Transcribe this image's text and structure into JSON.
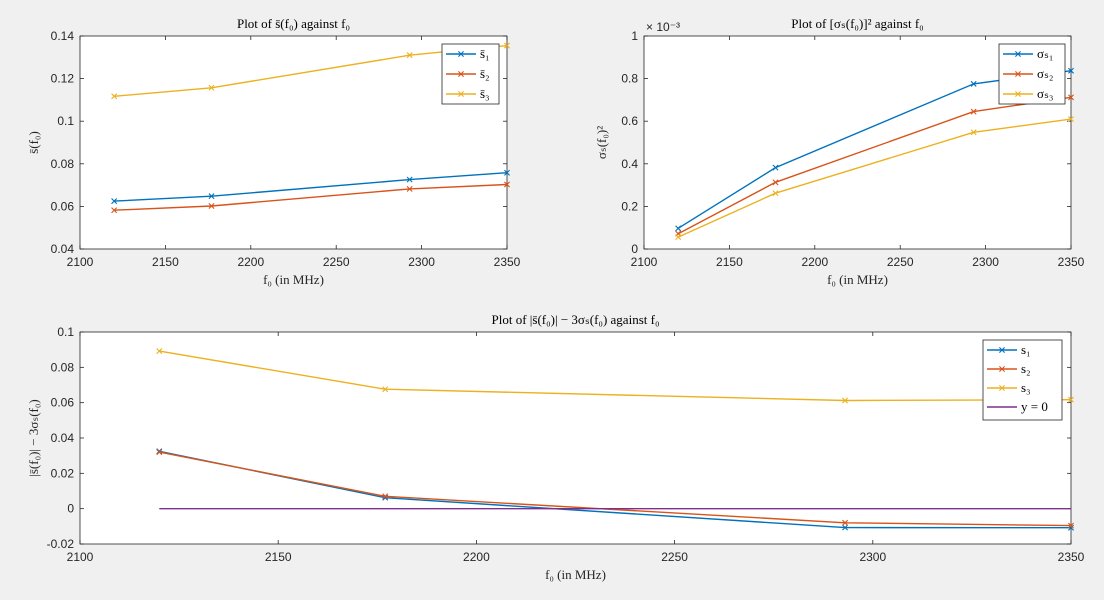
{
  "chart_data": [
    {
      "type": "line",
      "title": "Plot of s̄(f₀) against f₀",
      "xlabel": "f₀ (in MHz)",
      "ylabel": "s̄(f₀)",
      "xlim": [
        2100,
        2350
      ],
      "ylim": [
        0.04,
        0.14
      ],
      "xticks": [
        "2100",
        "2150",
        "2200",
        "2250",
        "2300",
        "2350"
      ],
      "yticks": [
        "0.04",
        "0.06",
        "0.08",
        "0.1",
        "0.12",
        "0.14"
      ],
      "x": [
        2120,
        2177,
        2293,
        2350
      ],
      "legend_position": "top-right",
      "series": [
        {
          "name": "s̄₁",
          "color": "#0072bd",
          "values": [
            0.0625,
            0.0648,
            0.0726,
            0.0758
          ]
        },
        {
          "name": "s̄₂",
          "color": "#d95319",
          "values": [
            0.0582,
            0.0602,
            0.0682,
            0.0703
          ]
        },
        {
          "name": "s̄₃",
          "color": "#edb120",
          "values": [
            0.1117,
            0.1157,
            0.131,
            0.1355
          ]
        }
      ]
    },
    {
      "type": "line",
      "title": "Plot of [σₛ(f₀)]² against f₀",
      "xlabel": "f₀ (in MHz)",
      "ylabel": "σₛ(f₀)²",
      "exponent_label": "× 10⁻³",
      "xlim": [
        2100,
        2350
      ],
      "ylim": [
        0,
        1
      ],
      "xticks": [
        "2100",
        "2150",
        "2200",
        "2250",
        "2300",
        "2350"
      ],
      "yticks": [
        "0",
        "0.2",
        "0.4",
        "0.6",
        "0.8",
        "1"
      ],
      "x": [
        2120,
        2177,
        2293,
        2350
      ],
      "legend_position": "top-right",
      "series": [
        {
          "name": "σₛ₁",
          "color": "#0072bd",
          "values": [
            0.097,
            0.382,
            0.775,
            0.837
          ]
        },
        {
          "name": "σₛ₂",
          "color": "#d95319",
          "values": [
            0.072,
            0.313,
            0.645,
            0.712
          ]
        },
        {
          "name": "σₛ₃",
          "color": "#edb120",
          "values": [
            0.056,
            0.262,
            0.548,
            0.61
          ]
        }
      ]
    },
    {
      "type": "line",
      "title": "Plot of |s̄(f₀)| − 3σₛ(f₀) against f₀",
      "xlabel": "f₀ (in MHz)",
      "ylabel": "|s̄(f₀)| − 3σₛ(f₀)",
      "xlim": [
        2100,
        2350
      ],
      "ylim": [
        -0.02,
        0.1
      ],
      "xticks": [
        "2100",
        "2150",
        "2200",
        "2250",
        "2300",
        "2350"
      ],
      "yticks": [
        "-0.02",
        "0",
        "0.02",
        "0.04",
        "0.06",
        "0.08",
        "0.1"
      ],
      "x": [
        2120,
        2177,
        2293,
        2350
      ],
      "legend_position": "top-right",
      "series": [
        {
          "name": "s₁",
          "color": "#0072bd",
          "values": [
            0.0325,
            0.0062,
            -0.0107,
            -0.0108
          ]
        },
        {
          "name": "s₂",
          "color": "#d95319",
          "values": [
            0.032,
            0.007,
            -0.008,
            -0.0096
          ]
        },
        {
          "name": "s₃",
          "color": "#edb120",
          "values": [
            0.0892,
            0.0676,
            0.0612,
            0.0617
          ]
        },
        {
          "name": "y = 0",
          "color": "#7e2f8e",
          "markers": false,
          "values": [
            0,
            0,
            0,
            0
          ]
        }
      ]
    }
  ]
}
